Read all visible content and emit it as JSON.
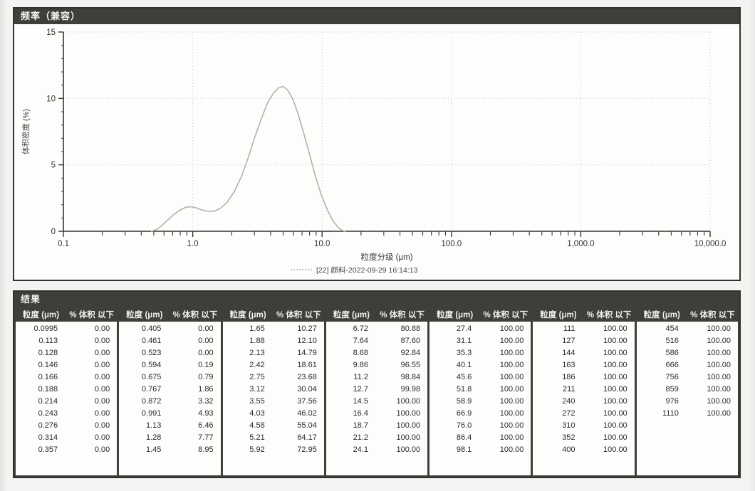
{
  "frequency_panel": {
    "title": "频率（兼容）"
  },
  "chart_data": {
    "type": "line",
    "title": "频率（兼容）",
    "xlabel": "粒度分级 (μm)",
    "ylabel": "体积密度 (%)",
    "x_scale": "log",
    "xlim": [
      0.1,
      10000
    ],
    "ylim": [
      0,
      15
    ],
    "grid": "dotted, at decades and y=5,10,15",
    "legend_position": "bottom-center",
    "x_ticks": [
      {
        "v": 0.1,
        "label": "0.1"
      },
      {
        "v": 1.0,
        "label": "1.0"
      },
      {
        "v": 10.0,
        "label": "10.0"
      },
      {
        "v": 100.0,
        "label": "100.0"
      },
      {
        "v": 1000.0,
        "label": "1,000.0"
      },
      {
        "v": 10000.0,
        "label": "10,000.0"
      }
    ],
    "y_ticks": [
      {
        "v": 0,
        "label": "0"
      },
      {
        "v": 5,
        "label": "5"
      },
      {
        "v": 10,
        "label": "10"
      },
      {
        "v": 15,
        "label": "15"
      }
    ],
    "series": [
      {
        "name": "[22] 颜料-2022-09-29 16:14:13",
        "color": "#b4b1ad",
        "points": [
          [
            0.48,
            0
          ],
          [
            0.53,
            0.15
          ],
          [
            0.58,
            0.45
          ],
          [
            0.65,
            0.9
          ],
          [
            0.72,
            1.3
          ],
          [
            0.8,
            1.6
          ],
          [
            0.88,
            1.8
          ],
          [
            0.96,
            1.85
          ],
          [
            1.05,
            1.78
          ],
          [
            1.18,
            1.6
          ],
          [
            1.32,
            1.5
          ],
          [
            1.48,
            1.52
          ],
          [
            1.65,
            1.75
          ],
          [
            1.85,
            2.2
          ],
          [
            2.1,
            3.0
          ],
          [
            2.4,
            4.2
          ],
          [
            2.7,
            5.6
          ],
          [
            3.0,
            7.0
          ],
          [
            3.4,
            8.5
          ],
          [
            3.8,
            9.7
          ],
          [
            4.2,
            10.4
          ],
          [
            4.6,
            10.8
          ],
          [
            5.0,
            10.9
          ],
          [
            5.4,
            10.65
          ],
          [
            5.9,
            10.0
          ],
          [
            6.5,
            8.9
          ],
          [
            7.2,
            7.4
          ],
          [
            8.0,
            5.8
          ],
          [
            8.9,
            4.1
          ],
          [
            9.9,
            2.7
          ],
          [
            11.0,
            1.6
          ],
          [
            12.2,
            0.75
          ],
          [
            13.4,
            0.25
          ],
          [
            14.4,
            0.05
          ],
          [
            15.2,
            0
          ]
        ]
      }
    ]
  },
  "results_panel": {
    "title": "结果",
    "col_size_label": "粒度 (μm)",
    "col_pct_label": "% 体积 以下",
    "tables": [
      {
        "rows": [
          [
            "0.0995",
            "0.00"
          ],
          [
            "0.113",
            "0.00"
          ],
          [
            "0.128",
            "0.00"
          ],
          [
            "0.146",
            "0.00"
          ],
          [
            "0.166",
            "0.00"
          ],
          [
            "0.188",
            "0.00"
          ],
          [
            "0.214",
            "0.00"
          ],
          [
            "0.243",
            "0.00"
          ],
          [
            "0.276",
            "0.00"
          ],
          [
            "0.314",
            "0.00"
          ],
          [
            "0.357",
            "0.00"
          ]
        ]
      },
      {
        "rows": [
          [
            "0.405",
            "0.00"
          ],
          [
            "0.461",
            "0.00"
          ],
          [
            "0.523",
            "0.00"
          ],
          [
            "0.594",
            "0.19"
          ],
          [
            "0.675",
            "0.79"
          ],
          [
            "0.767",
            "1.86"
          ],
          [
            "0.872",
            "3.32"
          ],
          [
            "0.991",
            "4.93"
          ],
          [
            "1.13",
            "6.46"
          ],
          [
            "1.28",
            "7.77"
          ],
          [
            "1.45",
            "8.95"
          ]
        ]
      },
      {
        "rows": [
          [
            "1.65",
            "10.27"
          ],
          [
            "1.88",
            "12.10"
          ],
          [
            "2.13",
            "14.79"
          ],
          [
            "2.42",
            "18.61"
          ],
          [
            "2.75",
            "23.68"
          ],
          [
            "3.12",
            "30.04"
          ],
          [
            "3.55",
            "37.56"
          ],
          [
            "4.03",
            "46.02"
          ],
          [
            "4.58",
            "55.04"
          ],
          [
            "5.21",
            "64.17"
          ],
          [
            "5.92",
            "72.95"
          ]
        ]
      },
      {
        "rows": [
          [
            "6.72",
            "80.88"
          ],
          [
            "7.64",
            "87.60"
          ],
          [
            "8.68",
            "92.84"
          ],
          [
            "9.86",
            "96.55"
          ],
          [
            "11.2",
            "98.84"
          ],
          [
            "12.7",
            "99.98"
          ],
          [
            "14.5",
            "100.00"
          ],
          [
            "16.4",
            "100.00"
          ],
          [
            "18.7",
            "100.00"
          ],
          [
            "21.2",
            "100.00"
          ],
          [
            "24.1",
            "100.00"
          ]
        ]
      },
      {
        "rows": [
          [
            "27.4",
            "100.00"
          ],
          [
            "31.1",
            "100.00"
          ],
          [
            "35.3",
            "100.00"
          ],
          [
            "40.1",
            "100.00"
          ],
          [
            "45.6",
            "100.00"
          ],
          [
            "51.8",
            "100.00"
          ],
          [
            "58.9",
            "100.00"
          ],
          [
            "66.9",
            "100.00"
          ],
          [
            "76.0",
            "100.00"
          ],
          [
            "86.4",
            "100.00"
          ],
          [
            "98.1",
            "100.00"
          ]
        ]
      },
      {
        "rows": [
          [
            "111",
            "100.00"
          ],
          [
            "127",
            "100.00"
          ],
          [
            "144",
            "100.00"
          ],
          [
            "163",
            "100.00"
          ],
          [
            "186",
            "100.00"
          ],
          [
            "211",
            "100.00"
          ],
          [
            "240",
            "100.00"
          ],
          [
            "272",
            "100.00"
          ],
          [
            "310",
            "100.00"
          ],
          [
            "352",
            "100.00"
          ],
          [
            "400",
            "100.00"
          ]
        ]
      },
      {
        "rows": [
          [
            "454",
            "100.00"
          ],
          [
            "516",
            "100.00"
          ],
          [
            "586",
            "100.00"
          ],
          [
            "666",
            "100.00"
          ],
          [
            "756",
            "100.00"
          ],
          [
            "859",
            "100.00"
          ],
          [
            "976",
            "100.00"
          ],
          [
            "1110",
            "100.00"
          ]
        ]
      }
    ]
  },
  "colors": {
    "header_bar": "#403e3b",
    "curve": "#b4b1ad",
    "grid": "#c9c8c3",
    "axis": "#37352f",
    "text": "#333230"
  }
}
